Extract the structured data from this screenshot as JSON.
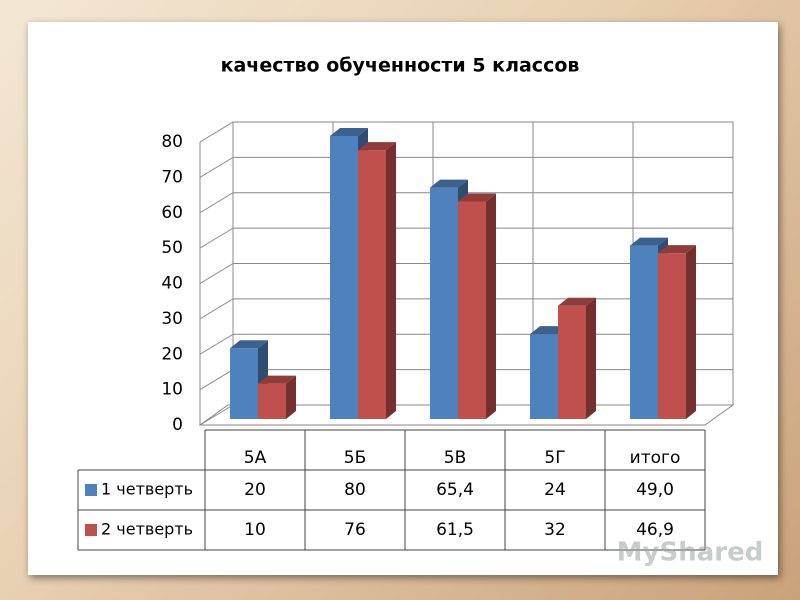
{
  "chart_data": {
    "type": "bar",
    "title": "качество обученности 5 классов",
    "categories": [
      "5А",
      "5Б",
      "5В",
      "5Г",
      "итого"
    ],
    "series": [
      {
        "name": "1 четверть",
        "color": "#4f81bd",
        "values": [
          20,
          80,
          65.4,
          24,
          49.0
        ],
        "value_labels": [
          "20",
          "80",
          "65,4",
          "24",
          "49,0"
        ]
      },
      {
        "name": "2 четверть",
        "color": "#c0504d",
        "values": [
          10,
          76,
          61.5,
          32,
          46.9
        ],
        "value_labels": [
          "10",
          "76",
          "61,5",
          "32",
          "46,9"
        ]
      }
    ],
    "ylim": [
      0,
      80
    ],
    "yticks": [
      0,
      10,
      20,
      30,
      40,
      50,
      60,
      70,
      80
    ],
    "grid": true,
    "watermark": "MyShared"
  }
}
